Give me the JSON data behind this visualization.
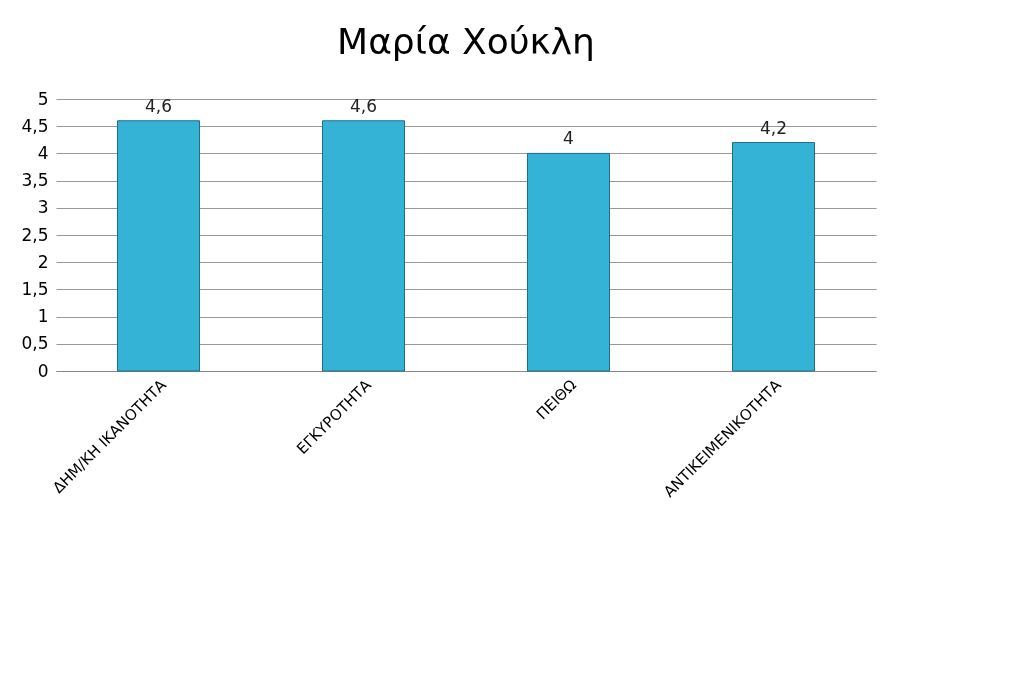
{
  "chart_data": {
    "type": "bar",
    "title": "Μαρία Χούκλη",
    "categories": [
      "ΔΗΜ/ΚΗ ΙΚΑΝΟΤΗΤΑ",
      "ΕΓΚΥΡΟΤΗΤΑ",
      "ΠΕΙΘΩ",
      "ΑΝΤΙΚΕΙΜΕΝΙΚΟΤΗΤΑ"
    ],
    "values": [
      4.6,
      4.6,
      4,
      4.2
    ],
    "value_labels": [
      "4,6",
      "4,6",
      "4",
      "4,2"
    ],
    "color": "#35b3d6",
    "ylim": [
      0,
      5
    ],
    "yticks": [
      0,
      {
        "value": 0.5,
        "label": "0,5"
      },
      1,
      {
        "value": 1.5,
        "label": "1,5"
      },
      2,
      {
        "value": 2.5,
        "label": "2,5"
      },
      3,
      {
        "value": 3.5,
        "label": "3,5"
      },
      4,
      {
        "value": 4.5,
        "label": "4,5"
      },
      5
    ],
    "grid": "y"
  }
}
